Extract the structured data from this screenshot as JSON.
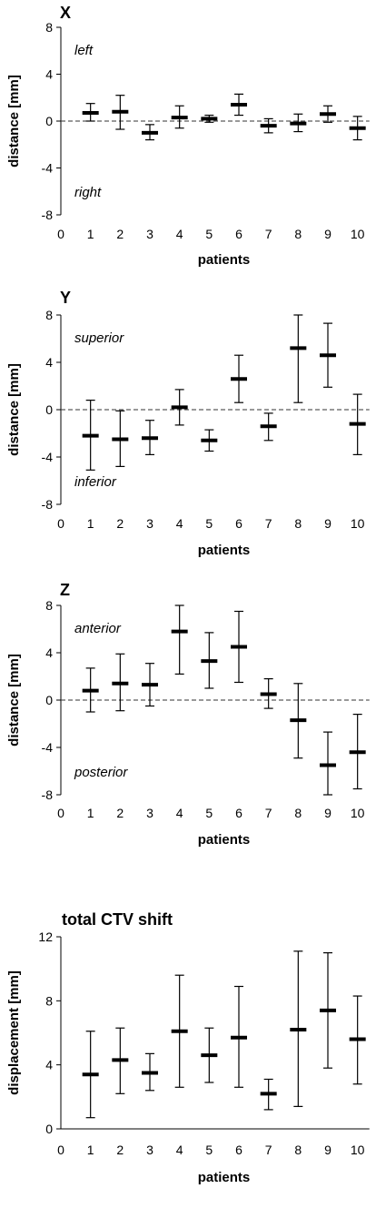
{
  "chart_data": [
    {
      "type": "errorbar",
      "title": "X",
      "xlabel": "patients",
      "ylabel": "distance [mm]",
      "x": [
        1,
        2,
        3,
        4,
        5,
        6,
        7,
        8,
        9,
        10
      ],
      "xticks": [
        0,
        1,
        2,
        3,
        4,
        5,
        6,
        7,
        8,
        9,
        10
      ],
      "ylim": [
        -8,
        8
      ],
      "yticks": [
        8,
        4,
        0,
        -4,
        -8
      ],
      "zero_line": true,
      "annotations": [
        {
          "text": "left",
          "at": "top-left"
        },
        {
          "text": "right",
          "at": "bottom-left"
        }
      ],
      "mean": [
        0.7,
        0.8,
        -1.0,
        0.3,
        0.2,
        1.4,
        -0.4,
        -0.2,
        0.6,
        -0.6
      ],
      "upper": [
        1.5,
        2.2,
        -0.3,
        1.3,
        0.5,
        2.3,
        0.2,
        0.6,
        1.3,
        0.4
      ],
      "lower": [
        0.0,
        -0.7,
        -1.6,
        -0.6,
        -0.1,
        0.5,
        -1.0,
        -0.9,
        -0.1,
        -1.6
      ]
    },
    {
      "type": "errorbar",
      "title": "Y",
      "xlabel": "patients",
      "ylabel": "distance [mm]",
      "x": [
        1,
        2,
        3,
        4,
        5,
        6,
        7,
        8,
        9,
        10
      ],
      "xticks": [
        0,
        1,
        2,
        3,
        4,
        5,
        6,
        7,
        8,
        9,
        10
      ],
      "ylim": [
        -8,
        8
      ],
      "yticks": [
        8,
        4,
        0,
        -4,
        -8
      ],
      "zero_line": true,
      "annotations": [
        {
          "text": "superior",
          "at": "top-left"
        },
        {
          "text": "inferior",
          "at": "bottom-left"
        }
      ],
      "mean": [
        -2.2,
        -2.5,
        -2.4,
        0.2,
        -2.6,
        2.6,
        -1.4,
        5.2,
        4.6,
        -1.2
      ],
      "upper": [
        0.8,
        -0.1,
        -0.9,
        1.7,
        -1.7,
        4.6,
        -0.3,
        8.0,
        7.3,
        1.3
      ],
      "lower": [
        -5.1,
        -4.8,
        -3.8,
        -1.3,
        -3.5,
        0.6,
        -2.6,
        0.6,
        1.9,
        -3.8
      ]
    },
    {
      "type": "errorbar",
      "title": "Z",
      "xlabel": "patients",
      "ylabel": "distance [mm]",
      "x": [
        1,
        2,
        3,
        4,
        5,
        6,
        7,
        8,
        9,
        10
      ],
      "xticks": [
        0,
        1,
        2,
        3,
        4,
        5,
        6,
        7,
        8,
        9,
        10
      ],
      "ylim": [
        -8,
        8
      ],
      "yticks": [
        8,
        4,
        0,
        -4,
        -8
      ],
      "zero_line": true,
      "annotations": [
        {
          "text": "anterior",
          "at": "top-left"
        },
        {
          "text": "posterior",
          "at": "bottom-left"
        }
      ],
      "mean": [
        0.8,
        1.4,
        1.3,
        5.8,
        3.3,
        4.5,
        0.5,
        -1.7,
        -5.5,
        -4.4
      ],
      "upper": [
        2.7,
        3.9,
        3.1,
        8.0,
        5.7,
        7.5,
        1.8,
        1.4,
        -2.7,
        -1.2
      ],
      "lower": [
        -1.0,
        -0.9,
        -0.5,
        2.2,
        1.0,
        1.5,
        -0.7,
        -4.9,
        -8.0,
        -7.5
      ]
    },
    {
      "type": "errorbar",
      "title": "total CTV shift",
      "xlabel": "patients",
      "ylabel": "displacement [mm]",
      "x": [
        1,
        2,
        3,
        4,
        5,
        6,
        7,
        8,
        9,
        10
      ],
      "xticks": [
        0,
        1,
        2,
        3,
        4,
        5,
        6,
        7,
        8,
        9,
        10
      ],
      "ylim": [
        0,
        12
      ],
      "yticks": [
        12,
        8,
        4,
        0
      ],
      "zero_line": false,
      "annotations": [],
      "mean": [
        3.4,
        4.3,
        3.5,
        6.1,
        4.6,
        5.7,
        2.2,
        6.2,
        7.4,
        5.6
      ],
      "upper": [
        6.1,
        6.3,
        4.7,
        9.6,
        6.3,
        8.9,
        3.1,
        11.1,
        11.0,
        8.3
      ],
      "lower": [
        0.7,
        2.2,
        2.4,
        2.6,
        2.9,
        2.6,
        1.2,
        1.4,
        3.8,
        2.8
      ]
    }
  ]
}
